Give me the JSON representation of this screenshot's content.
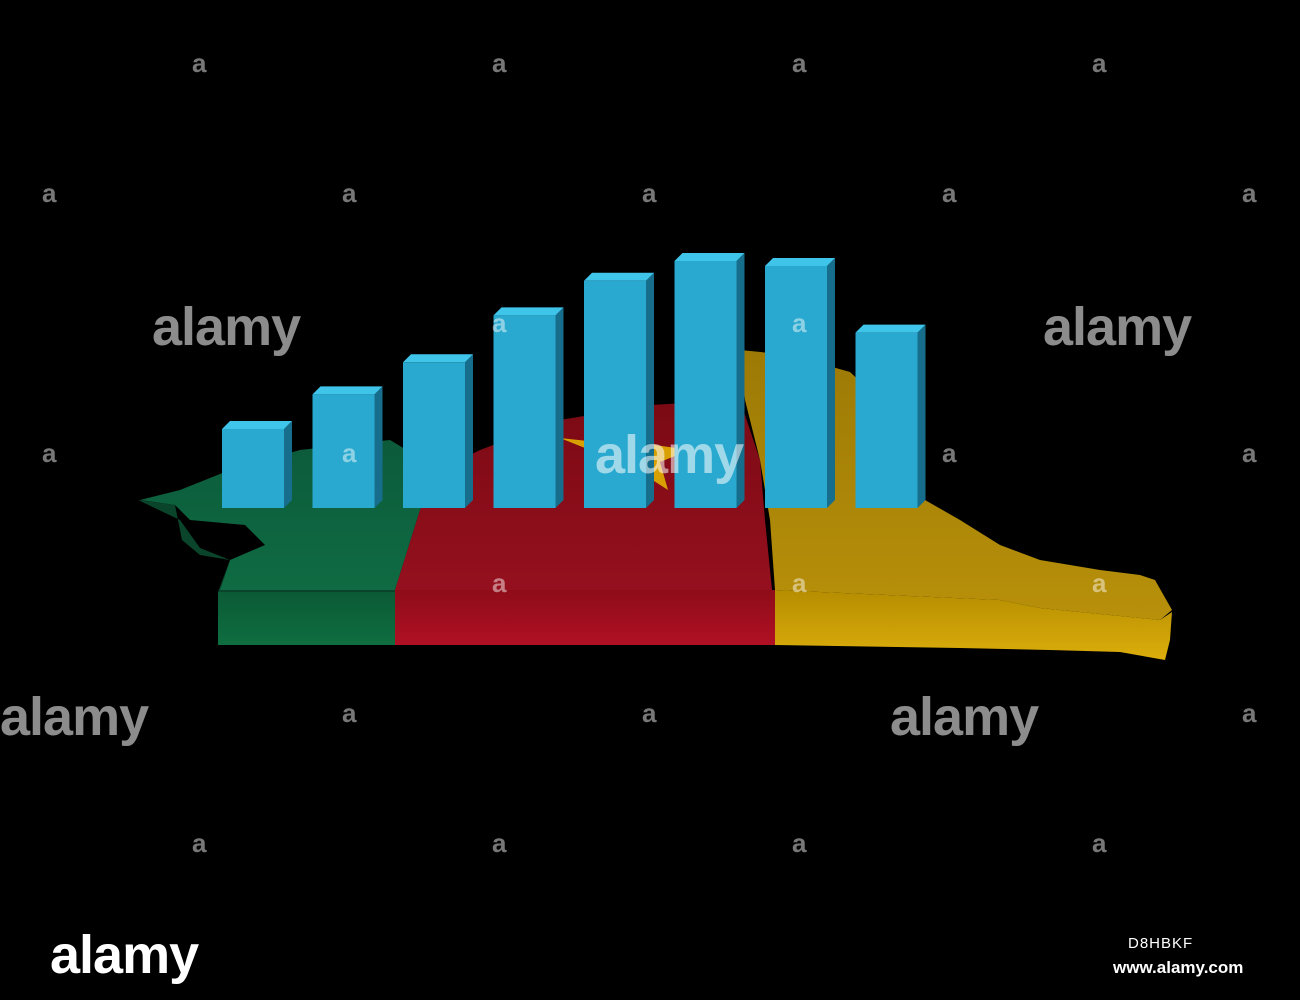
{
  "watermark": {
    "glyph": "a",
    "word": "alamy"
  },
  "stock_footer": {
    "logo_text": "alamy",
    "image_id": "D8HBKF",
    "site": "www.alamy.com"
  },
  "scene": {
    "subject": "3D bar chart rising over Cameroon flag map",
    "bar_heights_relative": [
      0.32,
      0.46,
      0.59,
      0.78,
      0.92,
      1.0,
      0.98,
      0.71
    ],
    "flag_colors": {
      "green": "#0e6b3e",
      "red": "#a10e1c",
      "yellow": "#d4a800",
      "star": "#e8b800"
    },
    "bar_colors": {
      "front": "#29a9cf",
      "top": "#3fc4ea",
      "side": "#166e8c"
    }
  }
}
